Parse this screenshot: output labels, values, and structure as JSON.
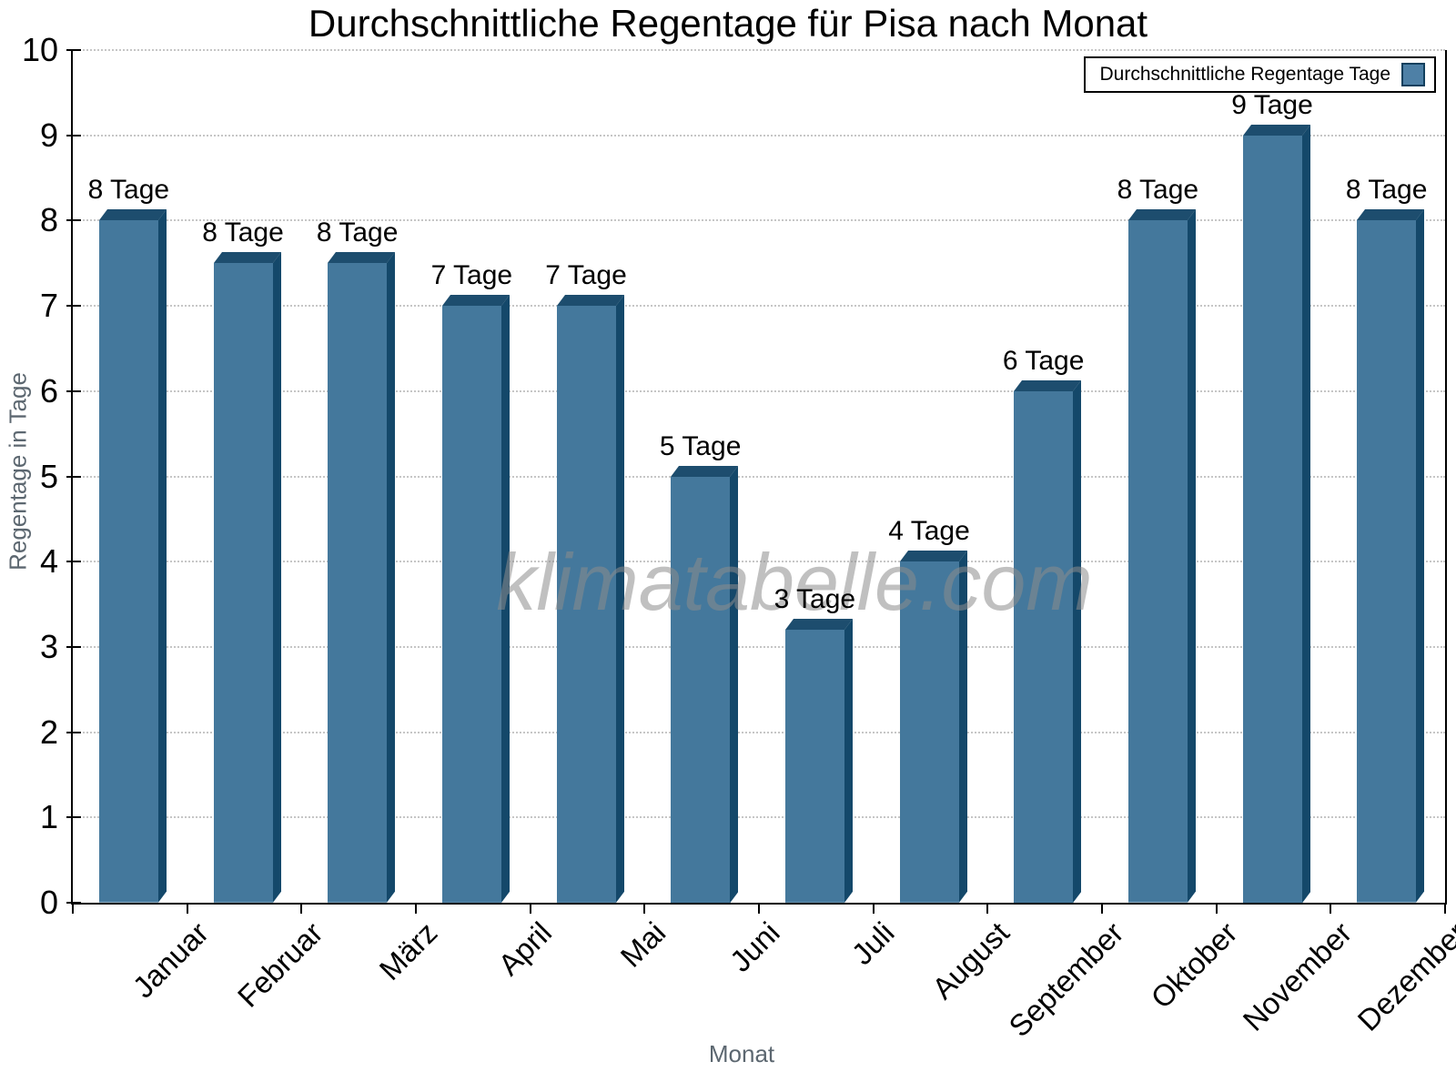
{
  "chart_data": {
    "type": "bar",
    "title": "Durchschnittliche Regentage für Pisa nach Monat",
    "xlabel": "Monat",
    "ylabel": "Regentage in Tage",
    "legend": "Durchschnittliche Regentage Tage",
    "legend_position": "top-right",
    "watermark": "klimatabelle.com",
    "categories": [
      "Januar",
      "Februar",
      "März",
      "April",
      "Mai",
      "Juni",
      "Juli",
      "August",
      "September",
      "Oktober",
      "November",
      "Dezember"
    ],
    "values": [
      8,
      7.5,
      7.5,
      7,
      7,
      5,
      3.2,
      4,
      6,
      8,
      9,
      8
    ],
    "bar_labels": [
      "8 Tage",
      "8 Tage",
      "8 Tage",
      "7 Tage",
      "7 Tage",
      "5 Tage",
      "3 Tage",
      "4 Tage",
      "6 Tage",
      "8 Tage",
      "9 Tage",
      "8 Tage"
    ],
    "ylim": [
      0,
      10
    ],
    "yticks": [
      0,
      1,
      2,
      3,
      4,
      5,
      6,
      7,
      8,
      9,
      10
    ],
    "grid": "horizontal-dotted",
    "colors": {
      "bar_front": "#44789C",
      "bar_side": "#14486A",
      "bar_top": "#1D4D6E",
      "axis": "#000000",
      "grid": "#C6C6C6",
      "axis_title": "#5C6770",
      "watermark": "#8C8C8C",
      "legend_swatch": "#4E80A6"
    }
  }
}
